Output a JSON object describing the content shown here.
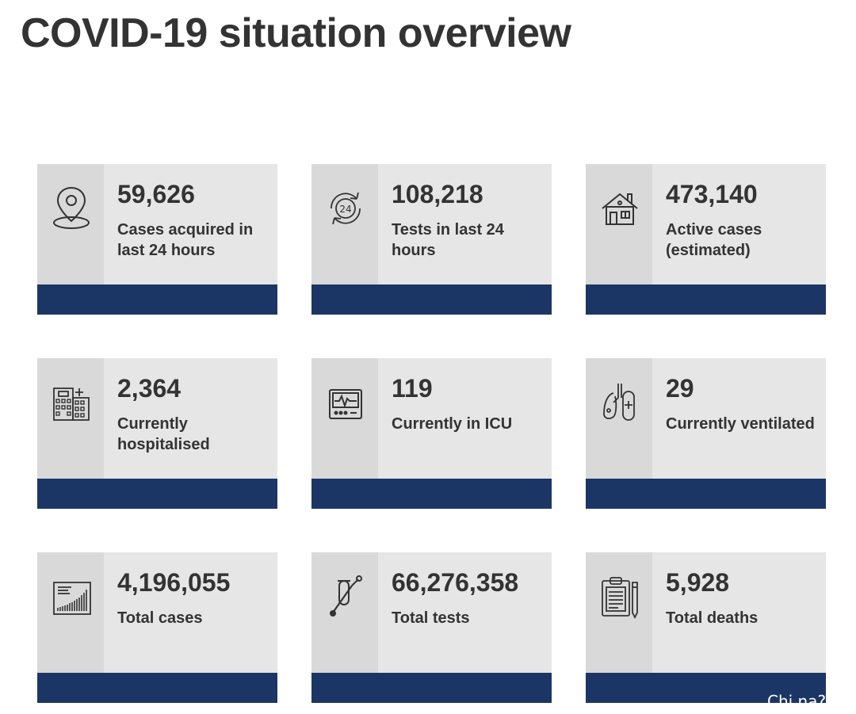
{
  "page": {
    "title": "COVID-19 situation overview"
  },
  "theme": {
    "card_background": "#e6e6e6",
    "icon_column_background": "#d9d9d9",
    "accent_bar": "#1b3665",
    "text": "#333333"
  },
  "stats": [
    {
      "value": "59,626",
      "label": "Cases acquired in last 24 hours",
      "icon": "location-pin-icon"
    },
    {
      "value": "108,218",
      "label": "Tests in last 24 hours",
      "icon": "24-hour-cycle-icon"
    },
    {
      "value": "473,140",
      "label": "Active cases (estimated)",
      "icon": "house-icon"
    },
    {
      "value": "2,364",
      "label": "Currently hospitalised",
      "icon": "hospital-building-icon"
    },
    {
      "value": "119",
      "label": "Currently in ICU",
      "icon": "heart-monitor-icon"
    },
    {
      "value": "29",
      "label": "Currently ventilated",
      "icon": "lungs-icon"
    },
    {
      "value": "4,196,055",
      "label": "Total cases",
      "icon": "rising-chart-icon"
    },
    {
      "value": "66,276,358",
      "label": "Total tests",
      "icon": "test-tube-swab-icon"
    },
    {
      "value": "5,928",
      "label": "Total deaths",
      "icon": "clipboard-report-icon"
    }
  ],
  "watermark": "Chi na?"
}
